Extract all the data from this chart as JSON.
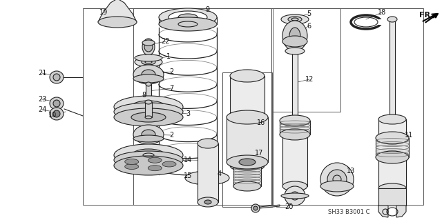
{
  "bg_color": "#ffffff",
  "fig_width": 6.4,
  "fig_height": 3.19,
  "line_color": "#222222",
  "label_color": "#111111",
  "footer_text": "SH33 B3001 C",
  "fr_text": "FR."
}
